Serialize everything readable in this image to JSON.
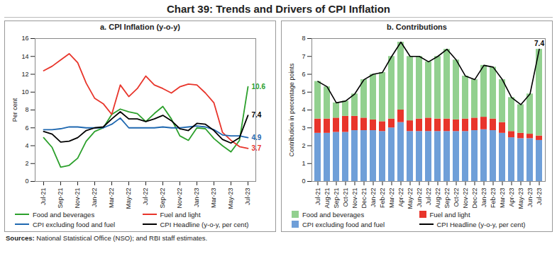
{
  "title": "Chart 39: Trends and Drivers of CPI Inflation",
  "source": "Sources: National Statistical Office (NSO); and RBI staff estimates.",
  "chart_data": [
    {
      "type": "line",
      "title": "a. CPI  Inflation (y-o-y)",
      "y_label": "Per cent",
      "categories": [
        "Jul-21",
        null,
        "Sep-21",
        null,
        "Nov-21",
        null,
        "Jan-22",
        null,
        "Mar-22",
        null,
        "May-22",
        null,
        "Jul-22",
        null,
        "Sep-22",
        null,
        "Nov-22",
        null,
        "Jan-23",
        null,
        "Mar-23",
        null,
        "May-23",
        null,
        "Jul-23"
      ],
      "ylim": [
        0,
        16
      ],
      "yticks": [
        0,
        2,
        4,
        6,
        8,
        10,
        12,
        14,
        16
      ],
      "series": [
        {
          "name": "Food and beverages",
          "color": "#2ca02c",
          "values": [
            4.9,
            3.8,
            1.6,
            1.8,
            2.6,
            4.5,
            5.6,
            6.0,
            7.5,
            8.1,
            7.8,
            7.6,
            6.7,
            7.6,
            8.4,
            7.0,
            5.1,
            4.6,
            6.0,
            5.9,
            4.8,
            4.0,
            3.3,
            4.6,
            10.6
          ]
        },
        {
          "name": "Fuel and light",
          "color": "#e8352b",
          "values": [
            12.4,
            12.9,
            13.6,
            14.3,
            13.3,
            11.0,
            9.3,
            8.7,
            7.5,
            10.8,
            9.5,
            10.4,
            11.8,
            10.8,
            10.4,
            9.9,
            10.6,
            10.9,
            10.8,
            9.9,
            8.8,
            5.5,
            4.6,
            3.9,
            3.7
          ]
        },
        {
          "name": "CPI excluding food and fuel",
          "color": "#1f68b0",
          "values": [
            5.8,
            5.8,
            5.9,
            6.1,
            6.1,
            6.0,
            6.0,
            6.0,
            6.4,
            7.1,
            6.0,
            6.0,
            6.0,
            6.0,
            6.1,
            6.0,
            6.0,
            6.1,
            6.2,
            6.1,
            5.8,
            5.2,
            5.1,
            5.1,
            4.9
          ]
        },
        {
          "name": "CPI Headline (y-o-y, per cent)",
          "color": "#000000",
          "values": [
            5.6,
            5.3,
            4.4,
            4.5,
            4.9,
            5.7,
            6.0,
            6.1,
            7.0,
            7.8,
            7.0,
            7.0,
            6.7,
            7.0,
            7.4,
            6.8,
            5.9,
            5.7,
            6.5,
            6.4,
            5.7,
            4.7,
            4.3,
            4.9,
            7.4
          ]
        }
      ],
      "annotations": [
        {
          "text": "10.6",
          "x": "Jul-23",
          "y": 10.6,
          "color": "#2ca02c"
        },
        {
          "text": "7.4",
          "x": "Jul-23",
          "y": 7.4,
          "color": "#000000"
        },
        {
          "text": "4.9",
          "x": "Jul-23",
          "y": 4.9,
          "color": "#1f68b0"
        },
        {
          "text": "3.7",
          "x": "Jul-23",
          "y": 3.7,
          "color": "#e8352b"
        }
      ]
    },
    {
      "type": "bar",
      "title": "b. Contributions",
      "y_label": "Contribution in percentage points",
      "stacked": true,
      "categories": [
        "Jul-21",
        "Aug-21",
        "Sep-21",
        "Oct-21",
        "Nov-21",
        "Dec-21",
        "Jan-22",
        "Feb-22",
        "Mar-22",
        "Apr-22",
        "May-22",
        "Jun-22",
        "Jul-22",
        "Aug-22",
        "Sep-22",
        "Oct-22",
        "Nov-22",
        "Dec-22",
        "Jan-23",
        "Feb-23",
        "Mar-23",
        "Apr-23",
        "May-23",
        "Jun-23",
        "Jul-23"
      ],
      "ylim": [
        0,
        8
      ],
      "yticks": [
        0,
        1,
        2,
        3,
        4,
        5,
        6,
        7,
        8
      ],
      "series": [
        {
          "name": "Food and beverages",
          "color": "#92d08f",
          "values": [
            2.1,
            1.8,
            0.85,
            0.85,
            1.25,
            2.15,
            2.55,
            2.75,
            3.5,
            3.8,
            3.6,
            3.5,
            3.15,
            3.5,
            3.9,
            3.35,
            2.4,
            2.15,
            2.9,
            2.9,
            2.4,
            1.9,
            1.6,
            2.25,
            4.85
          ]
        },
        {
          "name": "Fuel and light",
          "color": "#e8352b",
          "values": [
            0.8,
            0.8,
            0.8,
            0.9,
            0.8,
            0.7,
            0.6,
            0.55,
            0.5,
            0.7,
            0.6,
            0.7,
            0.75,
            0.7,
            0.7,
            0.65,
            0.7,
            0.7,
            0.7,
            0.65,
            0.6,
            0.35,
            0.3,
            0.25,
            0.25
          ]
        },
        {
          "name": "CPI excluding food and fuel",
          "color": "#6f9fd8",
          "values": [
            2.7,
            2.7,
            2.75,
            2.75,
            2.85,
            2.85,
            2.85,
            2.8,
            3.0,
            3.3,
            2.8,
            2.8,
            2.8,
            2.8,
            2.8,
            2.8,
            2.8,
            2.85,
            2.9,
            2.85,
            2.7,
            2.45,
            2.4,
            2.4,
            2.3
          ]
        },
        {
          "name": "CPI Headline (y-o-y, per cent)",
          "color": "#000000",
          "type": "line",
          "values": [
            5.6,
            5.3,
            4.4,
            4.5,
            4.9,
            5.7,
            6.0,
            6.1,
            7.0,
            7.8,
            7.0,
            7.0,
            6.7,
            7.0,
            7.4,
            6.8,
            5.9,
            5.7,
            6.5,
            6.4,
            5.7,
            4.7,
            4.3,
            4.9,
            7.4
          ]
        }
      ],
      "annotations": [
        {
          "text": "7.4",
          "x": "Jul-23",
          "y": 7.4,
          "color": "#000000"
        }
      ]
    }
  ]
}
